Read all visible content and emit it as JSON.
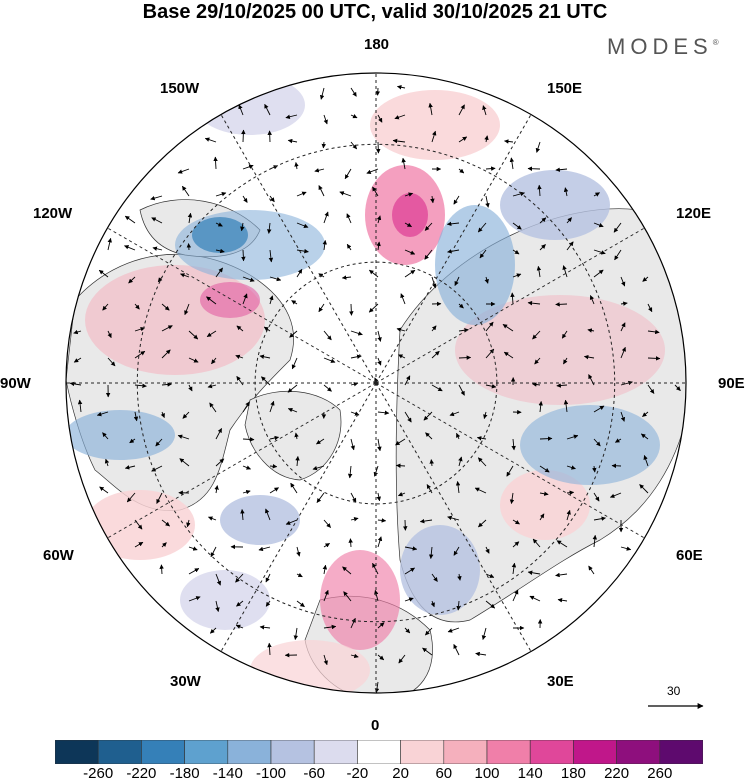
{
  "title": "Base 29/10/2025 00 UTC, valid 30/10/2025 21 UTC",
  "brand": "MODES",
  "brand_mark": "®",
  "longitude_labels": {
    "n180": "180",
    "lon150W": "150W",
    "lon150E": "150E",
    "lon120W": "120W",
    "lon120E": "120E",
    "lon90W": "90W",
    "lon90E": "90E",
    "lon60W": "60W",
    "lon60E": "60E",
    "lon30W": "30W",
    "lon30E": "30E",
    "n0": "0"
  },
  "vector_scale": {
    "label": "30"
  },
  "colorbar": {
    "colors": [
      "#0d3658",
      "#1f5f8f",
      "#3580b8",
      "#5ea1cf",
      "#8ab2da",
      "#b5c2e1",
      "#dcdcee",
      "#ffffff",
      "#f9d3d6",
      "#f5b0bd",
      "#f07fa9",
      "#e0479a",
      "#c0178a",
      "#8e0f7d",
      "#5e0a6e"
    ],
    "ticks": [
      "-260",
      "-220",
      "-180",
      "-140",
      "-100",
      "-60",
      "-20",
      "20",
      "60",
      "100",
      "140",
      "180",
      "220",
      "260"
    ]
  },
  "colors": {
    "land": "#e9e9e9",
    "graticule": "#222222",
    "coast": "#333333"
  }
}
